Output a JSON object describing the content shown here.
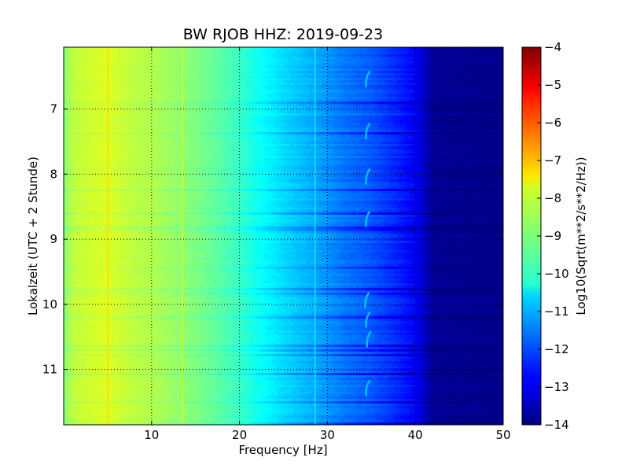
{
  "chart_data": {
    "type": "heatmap",
    "title": "BW RJOB HHZ: 2019-09-23",
    "xlabel": "Frequency [Hz]",
    "ylabel": "Lokalzeit (UTC + 2 Stunde)",
    "xlim": [
      0,
      50
    ],
    "ylim": [
      6.05,
      11.85
    ],
    "y_inverted": true,
    "x_ticks": [
      10,
      20,
      30,
      40,
      50
    ],
    "y_ticks": [
      7,
      8,
      9,
      10,
      11
    ],
    "grid": true,
    "colormap": "jet",
    "colorbar": {
      "label": "Log10(Sqrt(m**2/s**2/Hz))",
      "range": [
        -14,
        -4
      ],
      "ticks": [
        -4,
        -5,
        -6,
        -7,
        -8,
        -9,
        -10,
        -11,
        -12,
        -13,
        -14
      ]
    },
    "spectrum_profile": {
      "frequency_hz": [
        0,
        1,
        3,
        5,
        8,
        10,
        13,
        15,
        18,
        20,
        22,
        25,
        28,
        30,
        32,
        35,
        38,
        40,
        41,
        42,
        50
      ],
      "log_amplitude": [
        -8.9,
        -8.4,
        -8.2,
        -8.1,
        -8.4,
        -8.5,
        -8.8,
        -9.0,
        -9.4,
        -9.7,
        -10.1,
        -10.6,
        -11.0,
        -11.3,
        -11.6,
        -11.9,
        -12.4,
        -12.8,
        -13.3,
        -13.8,
        -13.9
      ]
    },
    "narrowband_lines_hz": [
      5.0,
      13.5,
      28.6
    ],
    "transient_events": {
      "frequency_hz": [
        34.5,
        34.5,
        34.5,
        34.5,
        34.4,
        34.5,
        34.6,
        34.5
      ],
      "time_h": [
        6.55,
        7.35,
        8.05,
        8.7,
        9.95,
        10.25,
        10.55,
        11.3
      ]
    }
  }
}
